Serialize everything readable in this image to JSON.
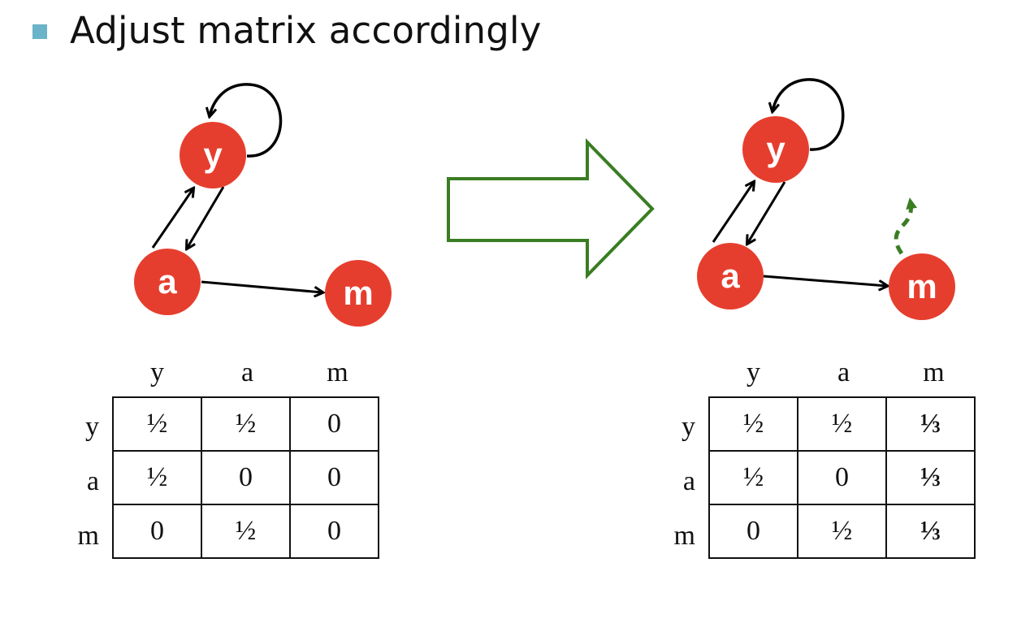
{
  "title": "Adjust matrix accordingly",
  "colors": {
    "node": "#e63e2e",
    "arrow_big": "#3a7d22",
    "teleport": "#3a7d22",
    "bullet": "#6bb3c8"
  },
  "left_graph": {
    "nodes": [
      "y",
      "a",
      "m"
    ]
  },
  "right_graph": {
    "nodes": [
      "y",
      "a",
      "m"
    ]
  },
  "left_matrix": {
    "col_headers": [
      "y",
      "a",
      "m"
    ],
    "row_headers": [
      "y",
      "a",
      "m"
    ],
    "rows": [
      [
        "½",
        "½",
        "0"
      ],
      [
        "½",
        "0",
        "0"
      ],
      [
        "0",
        "½",
        "0"
      ]
    ]
  },
  "right_matrix": {
    "col_headers": [
      "y",
      "a",
      "m"
    ],
    "row_headers": [
      "y",
      "a",
      "m"
    ],
    "rows": [
      [
        "½",
        "½",
        "⅓"
      ],
      [
        "½",
        "0",
        "⅓"
      ],
      [
        "0",
        "½",
        "⅓"
      ]
    ]
  }
}
